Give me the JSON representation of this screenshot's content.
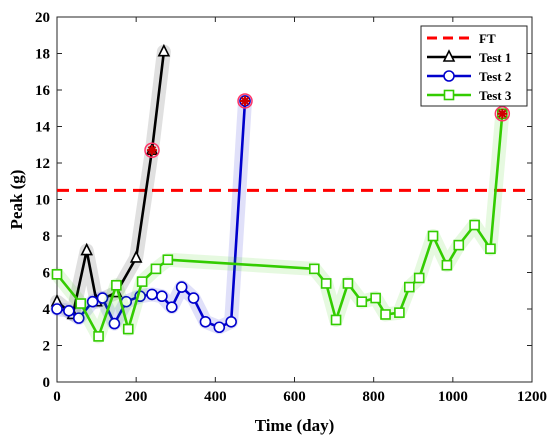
{
  "chart_data": {
    "type": "line",
    "title": "",
    "xlabel": "Time (day)",
    "ylabel": "Peak (g)",
    "xlim": [
      0,
      1200
    ],
    "ylim": [
      0,
      20
    ],
    "xticks": [
      0,
      200,
      400,
      600,
      800,
      1000,
      1200
    ],
    "yticks": [
      0,
      2,
      4,
      6,
      8,
      10,
      12,
      14,
      16,
      18,
      20
    ],
    "grid": false,
    "legend_position": "top-right",
    "threshold": {
      "name": "FT",
      "value": 10.5,
      "color": "#ff0000",
      "style": "dashed"
    },
    "series": [
      {
        "name": "Test 1",
        "color": "#000000",
        "marker": "triangle",
        "x": [
          0,
          40,
          75,
          100,
          150,
          200,
          240,
          270
        ],
        "y": [
          4.4,
          3.7,
          7.2,
          4.4,
          4.9,
          6.8,
          12.7,
          18.1
        ],
        "fault_point": {
          "x": 240,
          "y": 12.7
        }
      },
      {
        "name": "Test 2",
        "color": "#0000cc",
        "marker": "circle",
        "x": [
          0,
          30,
          55,
          90,
          115,
          145,
          175,
          210,
          240,
          265,
          290,
          315,
          345,
          375,
          410,
          440,
          475
        ],
        "y": [
          4.0,
          3.9,
          3.5,
          4.4,
          4.6,
          3.2,
          4.4,
          4.7,
          4.8,
          4.7,
          4.1,
          5.2,
          4.6,
          3.3,
          3.0,
          3.3,
          15.4
        ],
        "fault_point": {
          "x": 475,
          "y": 15.4
        }
      },
      {
        "name": "Test 3",
        "color": "#33cc00",
        "marker": "square",
        "x": [
          0,
          60,
          105,
          150,
          180,
          215,
          250,
          280,
          650,
          680,
          705,
          735,
          770,
          805,
          830,
          865,
          890,
          915,
          950,
          985,
          1015,
          1055,
          1095,
          1125
        ],
        "y": [
          5.9,
          4.3,
          2.5,
          5.3,
          2.9,
          5.5,
          6.2,
          6.7,
          6.2,
          5.4,
          3.4,
          5.4,
          4.4,
          4.6,
          3.7,
          3.8,
          5.2,
          5.7,
          8.0,
          6.4,
          7.5,
          8.6,
          7.3,
          14.7
        ],
        "fault_point": {
          "x": 1125,
          "y": 14.7
        }
      }
    ]
  }
}
